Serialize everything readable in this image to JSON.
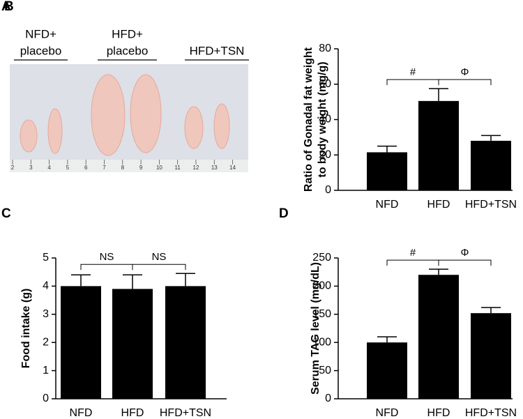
{
  "photo": {
    "label": "A",
    "groups": [
      [
        "NFD+",
        "placebo"
      ],
      [
        "HFD+",
        "placebo"
      ],
      [
        "HFD+TSN"
      ]
    ],
    "ruler": [
      "2",
      "3",
      "4",
      "5",
      "6",
      "7",
      "8",
      "9",
      "10",
      "11",
      "12",
      "13",
      "14"
    ]
  },
  "chart_data": [
    {
      "type": "bar",
      "label": "B",
      "ylabel": [
        "Ratio of Gonadal fat weight",
        "to body weight (mg/g)"
      ],
      "categories": [
        "NFD",
        "HFD",
        "HFD+TSN"
      ],
      "values": [
        21.5,
        50.5,
        28
      ],
      "errors": [
        3.5,
        7,
        3
      ],
      "color": "#000000",
      "ylim": [
        0,
        80
      ],
      "yticks": [
        0,
        20,
        40,
        60,
        80
      ],
      "annotations": [
        "#",
        "Φ"
      ]
    },
    {
      "type": "bar",
      "label": "C",
      "ylabel": [
        "Food intake (g)"
      ],
      "categories": [
        "NFD",
        "HFD",
        "HFD+TSN"
      ],
      "values": [
        4.0,
        3.9,
        4.0
      ],
      "errors": [
        0.4,
        0.5,
        0.45
      ],
      "color": "#000000",
      "ylim": [
        0,
        5
      ],
      "yticks": [
        0,
        1,
        2,
        3,
        4,
        5
      ],
      "annotations": [
        "NS",
        "NS"
      ]
    },
    {
      "type": "bar",
      "label": "D",
      "ylabel": [
        "Serum TAG level (mg/dL)"
      ],
      "categories": [
        "NFD",
        "HFD",
        "HFD+TSN"
      ],
      "values": [
        100,
        220,
        152
      ],
      "errors": [
        10,
        10,
        10
      ],
      "color": "#000000",
      "ylim": [
        0,
        250
      ],
      "yticks": [
        0,
        50,
        100,
        150,
        200,
        250
      ],
      "annotations": [
        "#",
        "Φ"
      ]
    }
  ]
}
